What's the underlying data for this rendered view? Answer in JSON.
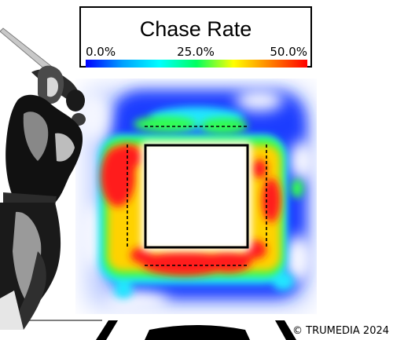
{
  "chart_data": {
    "type": "heatmap",
    "title": "Chase Rate",
    "color_scale": {
      "min_label": "0.0%",
      "mid_label": "25.0%",
      "max_label": "50.0%",
      "min": 0,
      "max": 50,
      "colors": [
        "#0000ff",
        "#00a0ff",
        "#00ffff",
        "#00ff60",
        "#ffff00",
        "#ff8000",
        "#ff0000"
      ]
    },
    "zones": {
      "strike_zone": "solid square",
      "shadow_zone": "dashed border"
    },
    "hot_regions": [
      {
        "location": "left edge of zone",
        "chase_rate_pct": 50
      },
      {
        "location": "upper-left corner",
        "chase_rate_pct": 48
      },
      {
        "location": "bottom edge of zone",
        "chase_rate_pct": 50
      },
      {
        "location": "lower-right corner",
        "chase_rate_pct": 45
      },
      {
        "location": "right edge of zone",
        "chase_rate_pct": 42
      },
      {
        "location": "top edge of zone",
        "chase_rate_pct": 30
      },
      {
        "location": "far outside zone",
        "chase_rate_pct": 3
      }
    ]
  },
  "copyright": "© TRUMEDIA 2024"
}
